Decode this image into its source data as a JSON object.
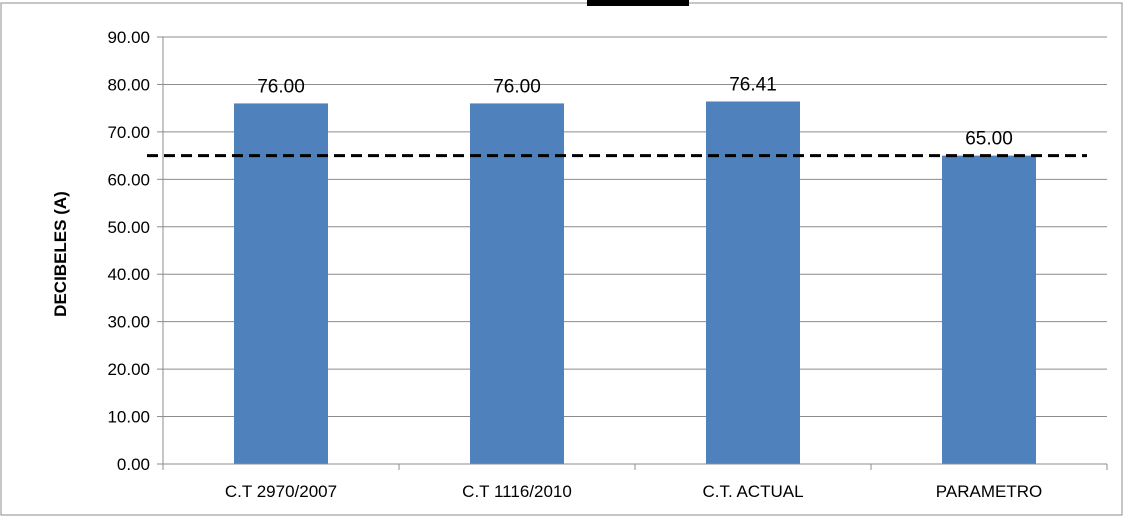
{
  "chart_data": {
    "type": "bar",
    "title": "",
    "xlabel": "",
    "ylabel": "DECIBELES (A)",
    "categories": [
      "C.T 2970/2007",
      "C.T 1116/2010",
      "C.T. ACTUAL",
      "PARAMETRO"
    ],
    "values": [
      76.0,
      76.0,
      76.41,
      65.0
    ],
    "value_labels": [
      "76.00",
      "76.00",
      "76.41",
      "65.00"
    ],
    "y_ticks": [
      "0.00",
      "10.00",
      "20.00",
      "30.00",
      "40.00",
      "50.00",
      "60.00",
      "70.00",
      "80.00",
      "90.00"
    ],
    "ylim": [
      0,
      90
    ],
    "reference_line": {
      "value": 65,
      "style": "dashed",
      "color": "#000000"
    },
    "grid": true,
    "legend": "none",
    "bar_color": "#4f81bd"
  }
}
